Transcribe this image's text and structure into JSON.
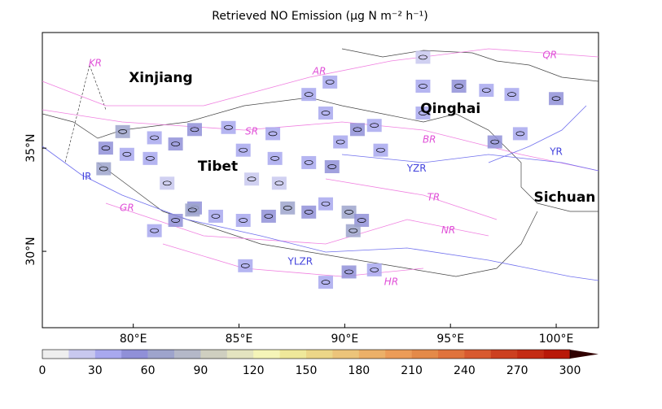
{
  "title": "Retrieved NO Emission (μg N m⁻² h⁻¹)",
  "map": {
    "xlim": [
      75.7,
      102
    ],
    "ylim": [
      26.3,
      40.6
    ],
    "xticks": [
      {
        "value": 80,
        "label": "80°E"
      },
      {
        "value": 85,
        "label": "85°E"
      },
      {
        "value": 90,
        "label": "90°E"
      },
      {
        "value": 95,
        "label": "95°E"
      },
      {
        "value": 100,
        "label": "100°E"
      }
    ],
    "yticks": [
      {
        "value": 30,
        "label": "30°N"
      },
      {
        "value": 35,
        "label": "35°N"
      }
    ],
    "regions": [
      {
        "text": "Xinjiang",
        "lon": 81.3,
        "lat": 38.4
      },
      {
        "text": "Tibet",
        "lon": 84.0,
        "lat": 34.1
      },
      {
        "text": "Qinghai",
        "lon": 95.0,
        "lat": 36.9
      },
      {
        "text": "Sichuan",
        "lon": 100.4,
        "lat": 32.6
      }
    ],
    "faults": [
      {
        "text": "KR",
        "lon": 78.2,
        "lat": 39.1
      },
      {
        "text": "AR",
        "lon": 88.8,
        "lat": 38.7
      },
      {
        "text": "QR",
        "lon": 99.7,
        "lat": 39.5
      },
      {
        "text": "SR",
        "lon": 85.6,
        "lat": 35.8
      },
      {
        "text": "BR",
        "lon": 94.0,
        "lat": 35.4
      },
      {
        "text": "TR",
        "lon": 94.2,
        "lat": 32.6
      },
      {
        "text": "GR",
        "lon": 79.7,
        "lat": 32.1
      },
      {
        "text": "NR",
        "lon": 94.9,
        "lat": 31.0
      },
      {
        "text": "HR",
        "lon": 92.2,
        "lat": 28.5
      }
    ],
    "rivers": [
      {
        "text": "IR",
        "lon": 77.8,
        "lat": 33.6
      },
      {
        "text": "YZR",
        "lon": 93.4,
        "lat": 34.0
      },
      {
        "text": "YR",
        "lon": 100.0,
        "lat": 34.8
      },
      {
        "text": "YLZR",
        "lon": 87.9,
        "lat": 29.5
      }
    ],
    "emission": [
      {
        "lon": 79.5,
        "lat": 35.8,
        "value": 60
      },
      {
        "lon": 78.7,
        "lat": 35.0,
        "value": 45
      },
      {
        "lon": 78.6,
        "lat": 34.0,
        "value": 60
      },
      {
        "lon": 79.7,
        "lat": 34.7,
        "value": 40
      },
      {
        "lon": 81.0,
        "lat": 35.5,
        "value": 40
      },
      {
        "lon": 82.0,
        "lat": 35.2,
        "value": 50
      },
      {
        "lon": 82.9,
        "lat": 35.9,
        "value": 45
      },
      {
        "lon": 80.8,
        "lat": 34.5,
        "value": 40
      },
      {
        "lon": 84.5,
        "lat": 36.0,
        "value": 30
      },
      {
        "lon": 85.2,
        "lat": 34.9,
        "value": 40
      },
      {
        "lon": 86.6,
        "lat": 35.7,
        "value": 40
      },
      {
        "lon": 86.7,
        "lat": 34.5,
        "value": 30
      },
      {
        "lon": 85.6,
        "lat": 33.5,
        "value": 20
      },
      {
        "lon": 86.9,
        "lat": 33.3,
        "value": 25
      },
      {
        "lon": 88.3,
        "lat": 34.3,
        "value": 30
      },
      {
        "lon": 81.6,
        "lat": 33.3,
        "value": 15
      },
      {
        "lon": 82.9,
        "lat": 32.1,
        "value": 45
      },
      {
        "lon": 83.9,
        "lat": 31.7,
        "value": 40
      },
      {
        "lon": 85.2,
        "lat": 31.5,
        "value": 35
      },
      {
        "lon": 86.4,
        "lat": 31.7,
        "value": 50
      },
      {
        "lon": 87.3,
        "lat": 32.1,
        "value": 60
      },
      {
        "lon": 88.3,
        "lat": 31.9,
        "value": 55
      },
      {
        "lon": 89.1,
        "lat": 32.3,
        "value": 40
      },
      {
        "lon": 90.2,
        "lat": 31.9,
        "value": 70
      },
      {
        "lon": 90.8,
        "lat": 31.5,
        "value": 45
      },
      {
        "lon": 90.4,
        "lat": 31.0,
        "value": 60
      },
      {
        "lon": 89.4,
        "lat": 34.1,
        "value": 45
      },
      {
        "lon": 89.8,
        "lat": 35.3,
        "value": 40
      },
      {
        "lon": 90.6,
        "lat": 35.9,
        "value": 55
      },
      {
        "lon": 91.4,
        "lat": 36.1,
        "value": 40
      },
      {
        "lon": 89.1,
        "lat": 36.7,
        "value": 35
      },
      {
        "lon": 88.3,
        "lat": 37.6,
        "value": 30
      },
      {
        "lon": 89.3,
        "lat": 38.2,
        "value": 40
      },
      {
        "lon": 93.7,
        "lat": 39.4,
        "value": 15
      },
      {
        "lon": 93.7,
        "lat": 38.0,
        "value": 40
      },
      {
        "lon": 95.4,
        "lat": 38.0,
        "value": 45
      },
      {
        "lon": 96.7,
        "lat": 37.8,
        "value": 40
      },
      {
        "lon": 97.9,
        "lat": 37.6,
        "value": 35
      },
      {
        "lon": 100.0,
        "lat": 37.4,
        "value": 50
      },
      {
        "lon": 97.1,
        "lat": 35.3,
        "value": 50
      },
      {
        "lon": 98.3,
        "lat": 35.7,
        "value": 40
      },
      {
        "lon": 93.7,
        "lat": 36.7,
        "value": 40
      },
      {
        "lon": 91.7,
        "lat": 34.9,
        "value": 30
      },
      {
        "lon": 85.3,
        "lat": 29.3,
        "value": 35
      },
      {
        "lon": 89.1,
        "lat": 28.5,
        "value": 40
      },
      {
        "lon": 90.2,
        "lat": 29.0,
        "value": 45
      },
      {
        "lon": 91.4,
        "lat": 29.1,
        "value": 40
      },
      {
        "lon": 82.0,
        "lat": 31.5,
        "value": 50
      },
      {
        "lon": 81.0,
        "lat": 31.0,
        "value": 40
      },
      {
        "lon": 82.8,
        "lat": 32.0,
        "value": 70
      }
    ]
  },
  "colorbar": {
    "ticks": [
      0,
      30,
      60,
      90,
      120,
      150,
      180,
      210,
      240,
      270,
      300
    ],
    "colors": [
      "#eeeeee",
      "#c8c8ee",
      "#a8a8ee",
      "#9090d8",
      "#9ea4cc",
      "#b4b8c8",
      "#cfcfc0",
      "#e4e4c0",
      "#f5f5b8",
      "#efe89a",
      "#ecd688",
      "#ecc47a",
      "#ecb068",
      "#ec9c58",
      "#e48a48",
      "#e0733c",
      "#d85a30",
      "#cc4020",
      "#c42c14",
      "#b81808"
    ],
    "extend_color": "#300000"
  }
}
